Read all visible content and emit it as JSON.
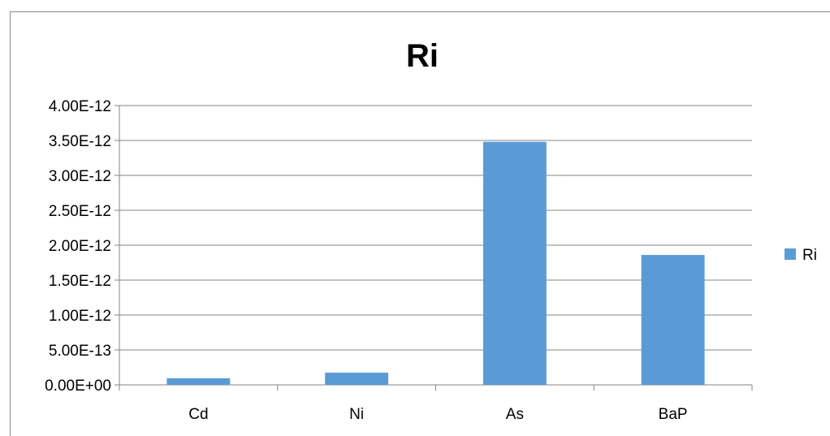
{
  "chart_data": {
    "type": "bar",
    "title": "Ri",
    "xlabel": "",
    "ylabel": "",
    "categories": [
      "Cd",
      "Ni",
      "As",
      "BaP"
    ],
    "series": [
      {
        "name": "Ri",
        "color": "#5b9bd5",
        "values": [
          9.5e-14,
          1.75e-13,
          3.48e-12,
          1.86e-12
        ]
      }
    ],
    "ylim": [
      0,
      4e-12
    ],
    "yticks": [
      0,
      5e-13,
      1e-12,
      1.5e-12,
      2e-12,
      2.5e-12,
      3e-12,
      3.5e-12,
      4e-12
    ],
    "ytick_labels": [
      "0.00E+00",
      "5.00E-13",
      "1.00E-12",
      "1.50E-12",
      "2.00E-12",
      "2.50E-12",
      "3.00E-12",
      "3.50E-12",
      "4.00E-12"
    ],
    "grid": true,
    "legend_position": "right"
  }
}
